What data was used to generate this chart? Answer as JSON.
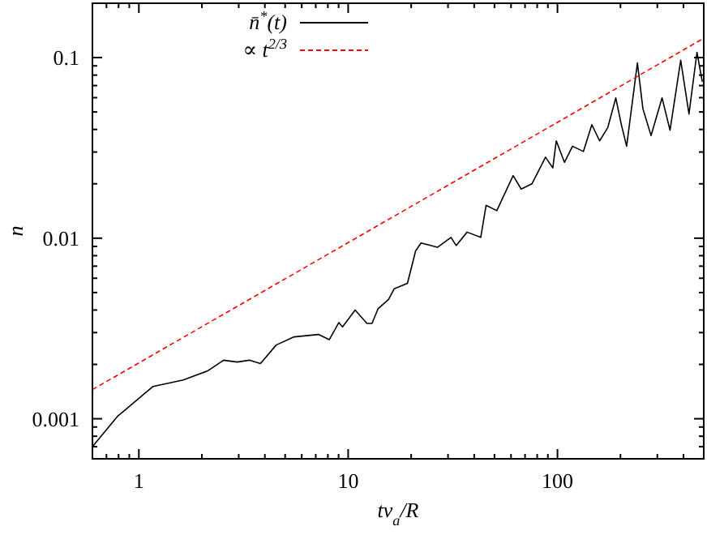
{
  "chart_data": {
    "type": "line",
    "xlabel": "tv$_{a}$/R",
    "ylabel": "n",
    "log": "xy",
    "legend": "top left",
    "grid": false,
    "marker": "none",
    "xlim": [
      0.6,
      500
    ],
    "ylim": [
      0.0006,
      0.2
    ],
    "xticks": [
      {
        "value": 0.6,
        "label": null
      },
      {
        "value": 0.7,
        "label": null
      },
      {
        "value": 0.8,
        "label": null
      },
      {
        "value": 0.9,
        "label": null
      },
      1,
      {
        "value": 2,
        "label": null
      },
      {
        "value": 3,
        "label": null
      },
      {
        "value": 4,
        "label": null
      },
      {
        "value": 5,
        "label": null
      },
      {
        "value": 6,
        "label": null
      },
      {
        "value": 7,
        "label": null
      },
      {
        "value": 8,
        "label": null
      },
      {
        "value": 9,
        "label": null
      },
      10,
      {
        "value": 20,
        "label": null
      },
      {
        "value": 30,
        "label": null
      },
      {
        "value": 40,
        "label": null
      },
      {
        "value": 50,
        "label": null
      },
      {
        "value": 60,
        "label": null
      },
      {
        "value": 70,
        "label": null
      },
      {
        "value": 80,
        "label": null
      },
      {
        "value": 90,
        "label": null
      },
      100,
      {
        "value": 200,
        "label": null
      },
      {
        "value": 300,
        "label": null
      },
      {
        "value": 400,
        "label": null
      }
    ],
    "yticks": [
      {
        "value": 0.0006,
        "label": null
      },
      {
        "value": 0.0007,
        "label": null
      },
      {
        "value": 0.0008,
        "label": null
      },
      {
        "value": 0.0009,
        "label": null
      },
      0.001,
      {
        "value": 0.002,
        "label": null
      },
      {
        "value": 0.003,
        "label": null
      },
      {
        "value": 0.004,
        "label": null
      },
      {
        "value": 0.005,
        "label": null
      },
      {
        "value": 0.006,
        "label": null
      },
      {
        "value": 0.007,
        "label": null
      },
      {
        "value": 0.008,
        "label": null
      },
      {
        "value": 0.009,
        "label": null
      },
      0.01,
      {
        "value": 0.02,
        "label": null
      },
      {
        "value": 0.03,
        "label": null
      },
      {
        "value": 0.04,
        "label": null
      },
      {
        "value": 0.05,
        "label": null
      },
      {
        "value": 0.06,
        "label": null
      },
      {
        "value": 0.07,
        "label": null
      },
      {
        "value": 0.08,
        "label": null
      },
      {
        "value": 0.09,
        "label": null
      },
      0.1,
      {
        "value": 0.2,
        "label": null
      }
    ],
    "series": [
      {
        "name": "n̄$^{*}$(t)",
        "color": "#000000",
        "line_style": "solid",
        "x": [
          0.6,
          0.79,
          1.17,
          1.63,
          2.13,
          2.54,
          2.95,
          3.37,
          3.81,
          4.53,
          5.52,
          7.21,
          8.12,
          9.03,
          9.4,
          10.8,
          12.3,
          13.0,
          13.9,
          15.6,
          16.6,
          19.2,
          21.0,
          22.3,
          26.7,
          31.0,
          32.8,
          37.0,
          43.0,
          45.6,
          51.3,
          61.4,
          67.1,
          75.5,
          80.2,
          87.7,
          95,
          98.7,
          108,
          118,
          133,
          146,
          159,
          174,
          190,
          202,
          214,
          241,
          256,
          280,
          316,
          345,
          388,
          425,
          464,
          492
        ],
        "values": [
          0.0007,
          0.00103,
          0.00151,
          0.00164,
          0.00184,
          0.00211,
          0.00206,
          0.00211,
          0.00202,
          0.00256,
          0.00284,
          0.00293,
          0.00274,
          0.00341,
          0.00323,
          0.004,
          0.00337,
          0.00337,
          0.00407,
          0.00458,
          0.00525,
          0.00562,
          0.0085,
          0.0094,
          0.0089,
          0.0101,
          0.0091,
          0.0108,
          0.0101,
          0.0152,
          0.0142,
          0.0222,
          0.0187,
          0.02,
          0.0229,
          0.0281,
          0.0245,
          0.0346,
          0.0263,
          0.0323,
          0.0302,
          0.0425,
          0.0346,
          0.041,
          0.0598,
          0.0425,
          0.0323,
          0.0935,
          0.0521,
          0.037,
          0.0598,
          0.0396,
          0.0966,
          0.0487,
          0.107,
          0.0735
        ]
      },
      {
        "name": "∝ t$^{2/3}$",
        "color": "#ff0000",
        "line_style": "dashed",
        "x": [
          0.6,
          500
        ],
        "values": [
          0.00145,
          0.128
        ]
      }
    ]
  }
}
